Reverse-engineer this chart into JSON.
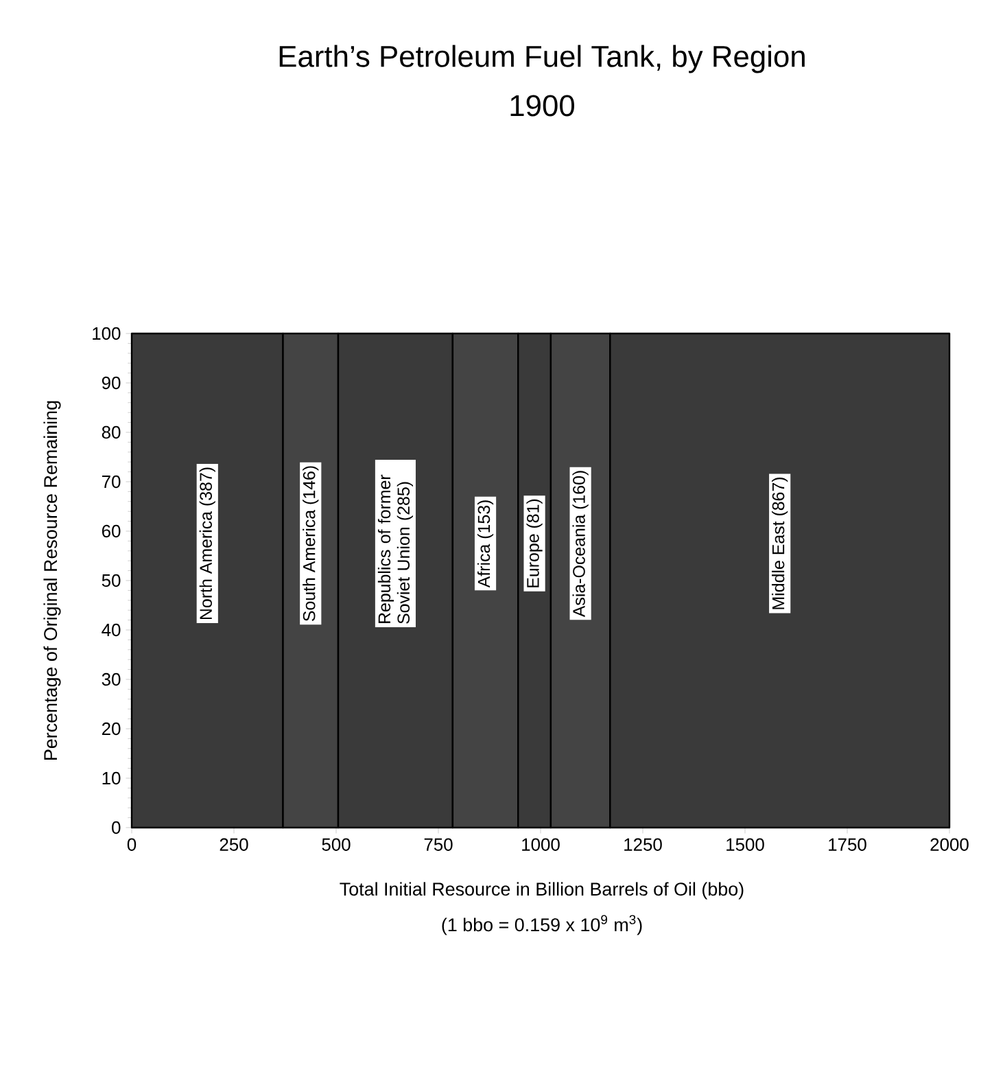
{
  "chart_data": {
    "type": "area",
    "title": "Earth’s Petroleum Fuel Tank, by Region",
    "subtitle": "1900",
    "xlabel": "Total Initial Resource in Billion Barrels of Oil (bbo)",
    "ylabel": "Percentage of Original Resource Remaining",
    "annotations": [
      "(1 bbo = 0.159 x 10$^{9}$ m$^{3}$)"
    ],
    "xlim": [
      0,
      2000
    ],
    "ylim": [
      0,
      100
    ],
    "xticks": [
      0,
      250,
      500,
      750,
      1000,
      1250,
      1500,
      1750,
      2000
    ],
    "yticks": [
      0,
      10,
      20,
      30,
      40,
      50,
      60,
      70,
      80,
      90,
      100
    ],
    "legend": false,
    "series": [
      {
        "name": "North America (387)",
        "color": "#3a3a3a",
        "x": [
          0,
          370
        ],
        "values": [
          100,
          100
        ]
      },
      {
        "name": "South America (146)",
        "color": "#444444",
        "x": [
          370,
          505
        ],
        "values": [
          100,
          100
        ]
      },
      {
        "name": "Republics of former Soviet Union (285)",
        "color": "#3a3a3a",
        "x": [
          505,
          785
        ],
        "values": [
          100,
          100
        ]
      },
      {
        "name": "Africa (153)",
        "color": "#444444",
        "x": [
          785,
          945
        ],
        "values": [
          100,
          100
        ]
      },
      {
        "name": "Europe (81)",
        "color": "#3a3a3a",
        "x": [
          945,
          1025
        ],
        "values": [
          100,
          100
        ]
      },
      {
        "name": "Asia-Oceania (160)",
        "color": "#444444",
        "x": [
          1025,
          1170
        ],
        "values": [
          100,
          100
        ]
      },
      {
        "name": "Middle East (867)",
        "color": "#3a3a3a",
        "x": [
          1170,
          2000
        ],
        "values": [
          100,
          100
        ]
      }
    ]
  }
}
